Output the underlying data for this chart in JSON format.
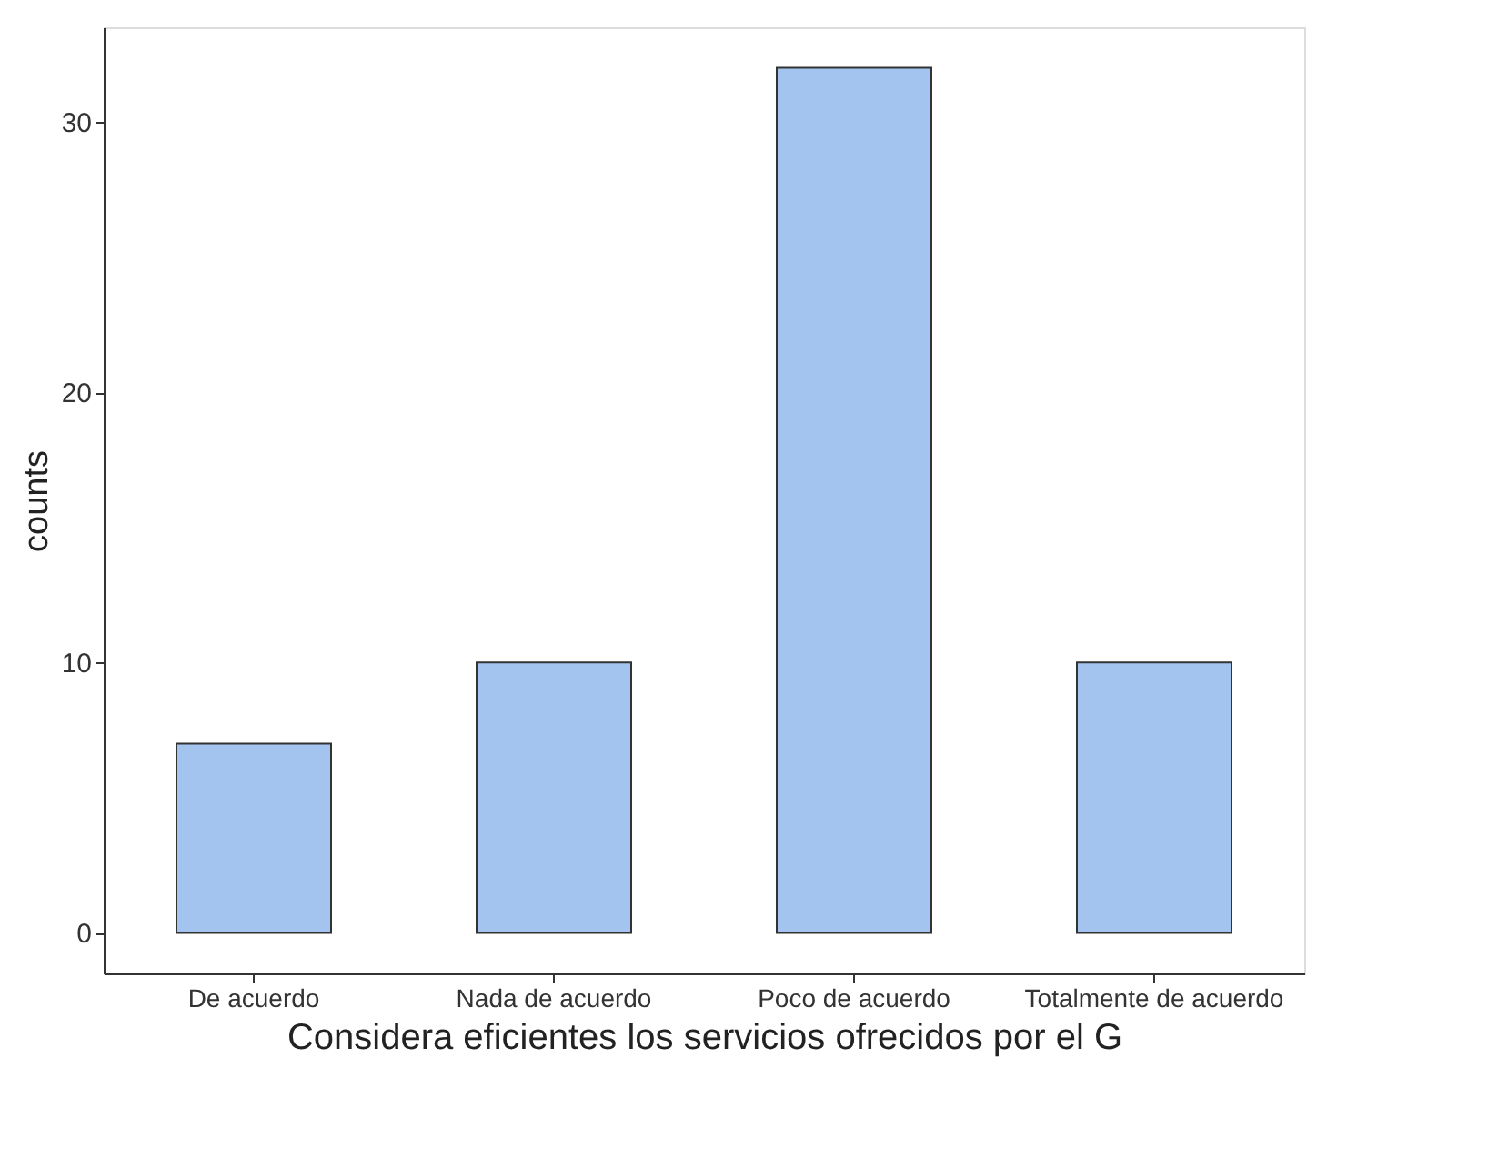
{
  "chart_data": {
    "type": "bar",
    "xlabel": "Considera eficientes los servicios ofrecidos por el G",
    "ylabel": "counts",
    "categories": [
      "De acuerdo",
      "Nada de acuerdo",
      "Poco de acuerdo",
      "Totalmente de acuerdo"
    ],
    "values": [
      7,
      10,
      32,
      10
    ],
    "color": "#a4c4f0",
    "ylim": [
      -1.5,
      33.5
    ],
    "yticks": [
      0,
      10,
      20,
      30
    ],
    "grid": false,
    "legend": false
  }
}
